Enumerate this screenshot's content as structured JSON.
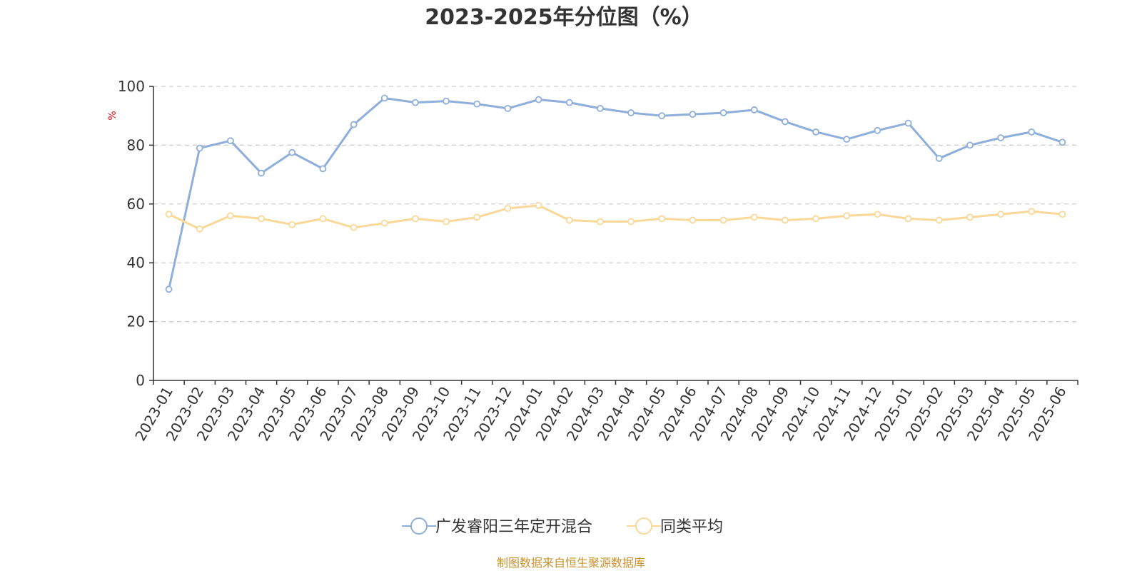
{
  "chart_data": {
    "type": "line",
    "title": "2023-2025年分位图（%）",
    "ylabel": "%",
    "xlabel": "",
    "ylim": [
      0,
      100
    ],
    "yticks": [
      "0",
      "20",
      "40",
      "60",
      "80",
      "100"
    ],
    "grid": true,
    "legend_position": "bottom",
    "categories": [
      "2023-01",
      "2023-02",
      "2023-03",
      "2023-04",
      "2023-05",
      "2023-06",
      "2023-07",
      "2023-08",
      "2023-09",
      "2023-10",
      "2023-11",
      "2023-12",
      "2024-01",
      "2024-02",
      "2024-03",
      "2024-04",
      "2024-05",
      "2024-06",
      "2024-07",
      "2024-08",
      "2024-09",
      "2024-10",
      "2024-11",
      "2024-12",
      "2025-01",
      "2025-02",
      "2025-03",
      "2025-04",
      "2025-05",
      "2025-06"
    ],
    "series": [
      {
        "name": "广发睿阳三年定开混合",
        "color": "#8eaedb",
        "values": [
          31,
          79,
          81.5,
          70.5,
          77.5,
          72,
          87,
          96,
          94.5,
          95,
          94,
          92.5,
          95.5,
          94.5,
          92.5,
          91,
          90,
          90.5,
          91,
          92,
          88,
          84.5,
          82,
          85,
          87.5,
          75.5,
          80,
          82.5,
          84.5,
          81
        ]
      },
      {
        "name": "同类平均",
        "color": "#fad898",
        "values": [
          56.5,
          51.5,
          56,
          55,
          53,
          55,
          52,
          53.5,
          55,
          54,
          55.5,
          58.5,
          59.5,
          54.5,
          54,
          54,
          55,
          54.5,
          54.5,
          55.5,
          54.5,
          55,
          56,
          56.5,
          55,
          54.5,
          55.5,
          56.5,
          57.5,
          56.5
        ]
      }
    ]
  },
  "footer": {
    "source": "制图数据来自恒生聚源数据库",
    "color": "#c8932c"
  },
  "colors": {
    "axis": "#333333",
    "grid": "#cccccc",
    "unit": "#e01010"
  }
}
